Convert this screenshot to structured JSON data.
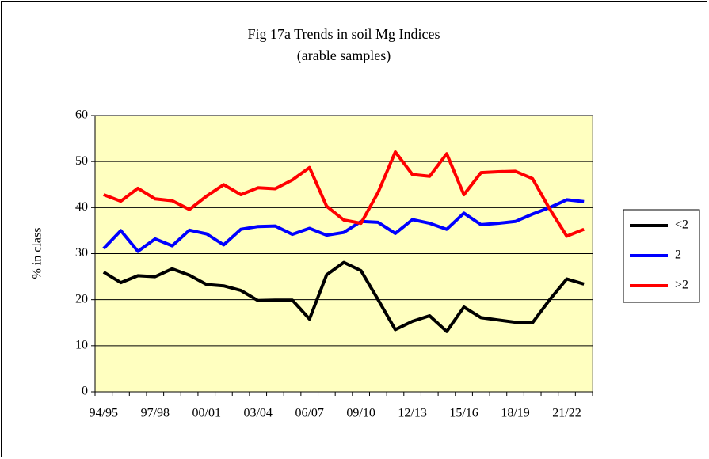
{
  "chart_data": {
    "type": "line",
    "title": "Fig 17a Trends in soil Mg Indices",
    "subtitle": "(arable samples)",
    "y_label": "% in class",
    "categories": [
      "94/95",
      null,
      null,
      "97/98",
      null,
      null,
      "00/01",
      null,
      null,
      "03/04",
      null,
      null,
      "06/07",
      null,
      null,
      "09/10",
      null,
      null,
      "12/13",
      null,
      null,
      "15/16",
      null,
      null,
      "18/19",
      null,
      null,
      "21/22",
      null
    ],
    "series": [
      {
        "name": "<2",
        "color": "#000000",
        "values": [
          26,
          23.7,
          25.2,
          25,
          26.7,
          25.3,
          23.3,
          23,
          22,
          19.8,
          19.9,
          19.9,
          15.8,
          25.4,
          28.1,
          26.3,
          20,
          13.5,
          15.3,
          16.5,
          13.1,
          18.4,
          16.1,
          15.6,
          15.1,
          15,
          20,
          24.5,
          23.4
        ]
      },
      {
        "name": "2",
        "color": "#0000ff",
        "values": [
          31.1,
          35,
          30.5,
          33.2,
          31.7,
          35.1,
          34.3,
          31.9,
          35.3,
          35.9,
          36,
          34.2,
          35.5,
          34,
          34.6,
          37,
          36.8,
          34.4,
          37.4,
          36.6,
          35.3,
          38.8,
          36.3,
          36.6,
          37,
          38.6,
          40,
          41.7,
          41.3
        ]
      },
      {
        "name": ">2",
        "color": "#ff0000",
        "values": [
          42.8,
          41.4,
          44.2,
          41.9,
          41.5,
          39.6,
          42.5,
          45,
          42.8,
          44.3,
          44.1,
          46,
          48.7,
          40.3,
          37.3,
          36.6,
          43.3,
          52.1,
          47.2,
          46.8,
          51.7,
          42.8,
          47.6,
          47.8,
          47.9,
          46.3,
          39.7,
          33.8,
          35.3
        ]
      }
    ],
    "ylim": [
      0,
      60
    ],
    "yticks": [
      0,
      10,
      20,
      30,
      40,
      50,
      60
    ],
    "grid": true,
    "legend": "right",
    "plot_background": "#ffffc0"
  }
}
